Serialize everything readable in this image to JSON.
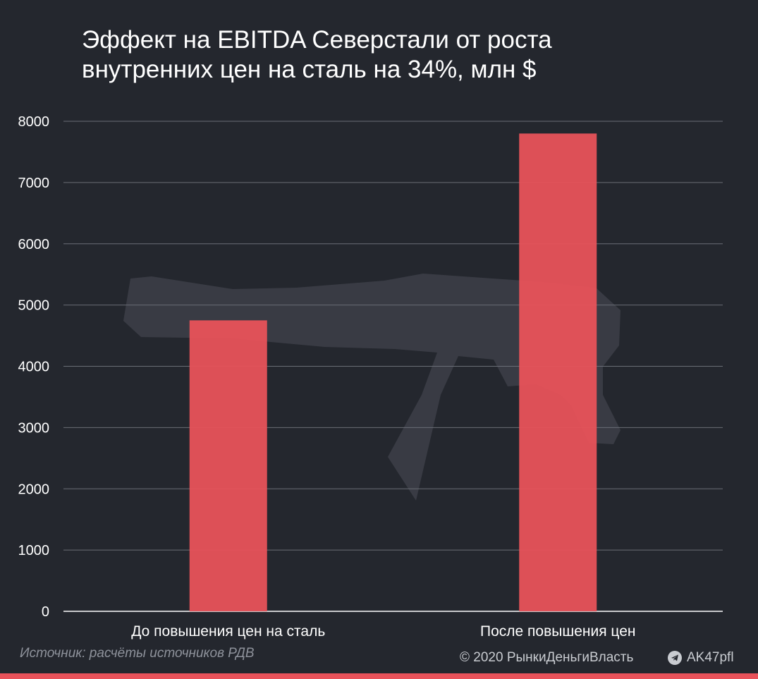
{
  "title_lines": [
    "Эффект на  EBITDA Северстали от роста",
    "внутренних цен на сталь на 34%, млн $"
  ],
  "source": "Источник: расчёты источников РДВ",
  "copyright": "© 2020  РынкиДеньгиВласть",
  "channel": "AK47pfl",
  "colors": {
    "background": "#24272e",
    "bar": "#e8525a",
    "grid": "#6a6e76",
    "text": "#ffffff"
  },
  "watermark_icon": "rifle-silhouette-icon",
  "chart_data": {
    "type": "bar",
    "categories": [
      "До повышения цен на сталь",
      "После повышения цен"
    ],
    "values": [
      4750,
      7800
    ],
    "title": "Эффект на  EBITDA Северстали от роста внутренних цен на сталь на 34%, млн $",
    "xlabel": "",
    "ylabel": "",
    "ylim": [
      0,
      8000
    ],
    "yticks": [
      0,
      1000,
      2000,
      3000,
      4000,
      5000,
      6000,
      7000,
      8000
    ],
    "grid": true,
    "legend": "none"
  }
}
